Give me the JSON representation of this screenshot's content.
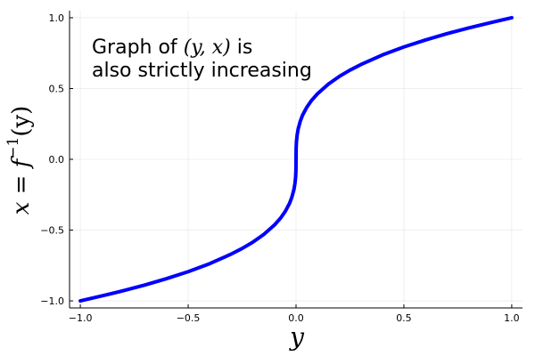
{
  "chart_data": {
    "type": "line",
    "title": "",
    "xlabel": "y",
    "ylabel": {
      "lhs": "x",
      "equals": " = ",
      "f": "f",
      "superscript": "−1",
      "args": "(y)"
    },
    "xlim": [
      -1.05,
      1.05
    ],
    "ylim": [
      -1.05,
      1.05
    ],
    "xticks": [
      -1.0,
      -0.5,
      0.0,
      0.5,
      1.0
    ],
    "xtick_labels": [
      "−1.0",
      "−0.5",
      "0.0",
      "0.5",
      "1.0"
    ],
    "yticks": [
      -1.0,
      -0.5,
      0.0,
      0.5,
      1.0
    ],
    "ytick_labels": [
      "−1.0",
      "−0.5",
      "0.0",
      "0.5",
      "1.0"
    ],
    "grid": true,
    "legend": "none",
    "series": [
      {
        "color": "#0000ff",
        "x": [
          -1.0,
          -0.9,
          -0.8,
          -0.7,
          -0.6,
          -0.5,
          -0.4,
          -0.3,
          -0.25,
          -0.2,
          -0.15,
          -0.1,
          -0.07,
          -0.05,
          -0.03,
          -0.02,
          -0.01,
          -0.005,
          -0.002,
          -0.0005,
          0.0,
          0.0005,
          0.002,
          0.005,
          0.01,
          0.02,
          0.03,
          0.05,
          0.07,
          0.1,
          0.15,
          0.2,
          0.25,
          0.3,
          0.4,
          0.5,
          0.6,
          0.7,
          0.8,
          0.9,
          1.0
        ],
        "y": [
          -1.0,
          -0.965,
          -0.928,
          -0.888,
          -0.843,
          -0.794,
          -0.737,
          -0.669,
          -0.63,
          -0.585,
          -0.531,
          -0.464,
          -0.412,
          -0.368,
          -0.311,
          -0.271,
          -0.215,
          -0.171,
          -0.126,
          -0.079,
          0.0,
          0.079,
          0.126,
          0.171,
          0.215,
          0.271,
          0.311,
          0.368,
          0.412,
          0.464,
          0.531,
          0.585,
          0.63,
          0.669,
          0.737,
          0.794,
          0.843,
          0.888,
          0.928,
          0.965,
          1.0
        ]
      }
    ],
    "annotation": {
      "line1_prefix": "Graph of ",
      "line1_math": "(y, x)",
      "line1_suffix": " is",
      "line2": "also strictly increasing"
    }
  }
}
